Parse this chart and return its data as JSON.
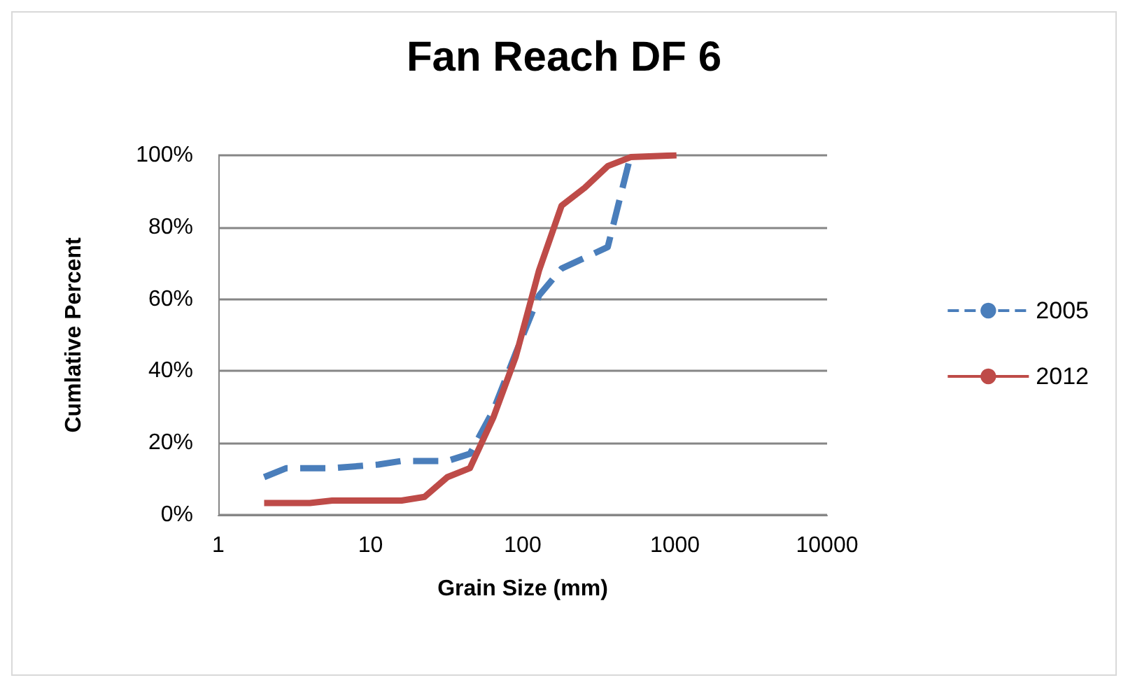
{
  "chart_data": {
    "type": "line",
    "title": "Fan Reach DF 6",
    "xlabel": "Grain Size (mm)",
    "ylabel": "Cumlative Percent",
    "log": "x",
    "xlim": [
      1,
      10000
    ],
    "xticks": [
      1,
      10,
      100,
      1000,
      10000
    ],
    "ylim": [
      0,
      100
    ],
    "yticks": [
      {
        "value": 0,
        "label": "0%"
      },
      {
        "value": 20,
        "label": "20%"
      },
      {
        "value": 40,
        "label": "40%"
      },
      {
        "value": 60,
        "label": "60%"
      },
      {
        "value": 80,
        "label": "80%"
      },
      {
        "value": 100,
        "label": "100%"
      }
    ],
    "grid": "y",
    "legend": "right",
    "series": [
      {
        "name": "2005",
        "color": "#4a7ebb",
        "line_style": "dashed",
        "x": [
          2,
          2.8,
          5.6,
          11.3,
          16,
          32,
          45,
          64,
          90,
          128,
          180,
          256,
          362,
          512
        ],
        "values": [
          10.5,
          13,
          13,
          14,
          15,
          15,
          17,
          29,
          45,
          61,
          68.5,
          71.5,
          74.5,
          100
        ]
      },
      {
        "name": "2012",
        "color": "#be4b48",
        "line_style": "solid",
        "x": [
          2,
          4,
          5.6,
          16,
          22.6,
          32,
          45,
          64,
          90,
          128,
          180,
          256,
          362,
          512,
          1024
        ],
        "values": [
          3.3,
          3.3,
          4,
          4,
          5,
          10.5,
          13,
          27,
          44,
          68,
          86,
          91,
          97,
          99.5,
          100
        ]
      }
    ]
  }
}
